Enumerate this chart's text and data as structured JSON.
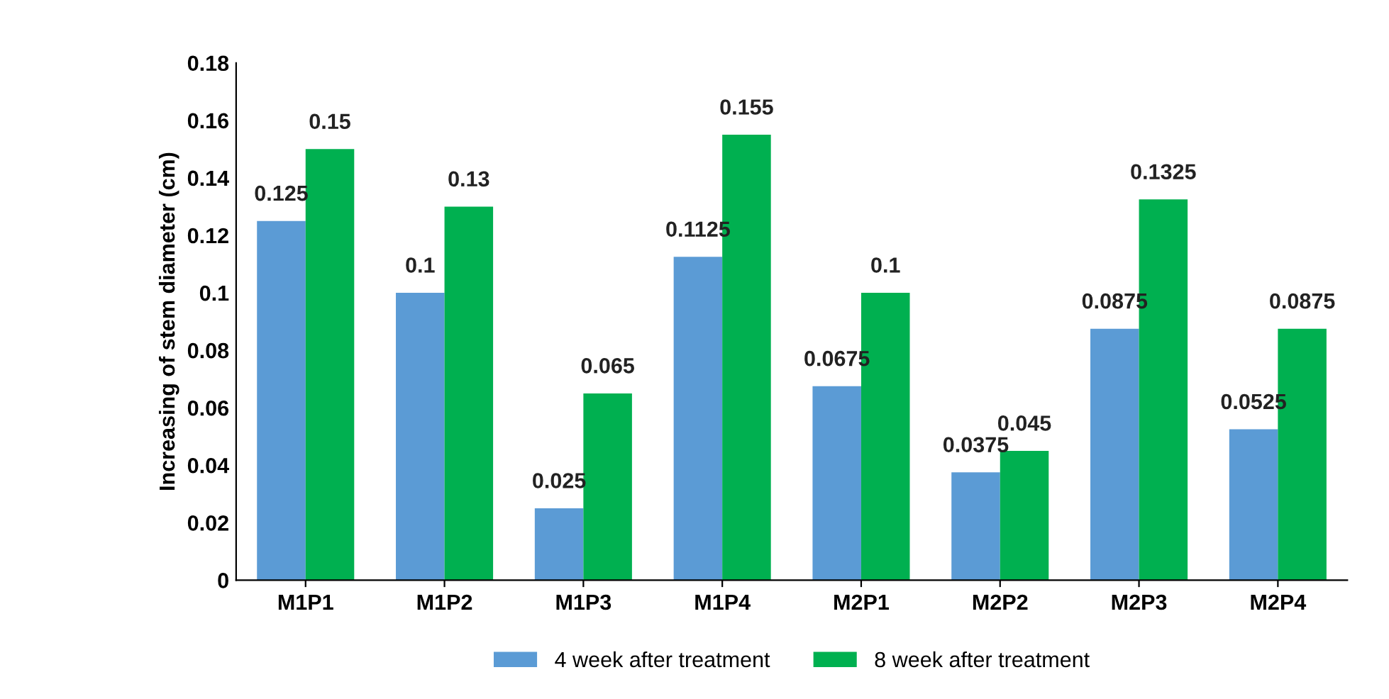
{
  "chart_data": {
    "type": "bar",
    "ylabel": "Increasing of stem diameter (cm)",
    "categories": [
      "M1P1",
      "M1P2",
      "M1P3",
      "M1P4",
      "M2P1",
      "M2P2",
      "M2P3",
      "M2P4"
    ],
    "series": [
      {
        "name": "4 week after treatment",
        "color": "#5b9bd5",
        "values": [
          0.125,
          0.1,
          0.025,
          0.1125,
          0.0675,
          0.0375,
          0.0875,
          0.0525
        ]
      },
      {
        "name": "8 week after treatment",
        "color": "#00b050",
        "values": [
          0.15,
          0.13,
          0.065,
          0.155,
          0.1,
          0.045,
          0.1325,
          0.0875
        ]
      }
    ],
    "ylim": [
      0,
      0.18
    ],
    "yticks": [
      0,
      0.02,
      0.04,
      0.06,
      0.08,
      0.1,
      0.12,
      0.14,
      0.16,
      0.18
    ],
    "data_labels": true,
    "grid": false,
    "legend": "bottom"
  }
}
